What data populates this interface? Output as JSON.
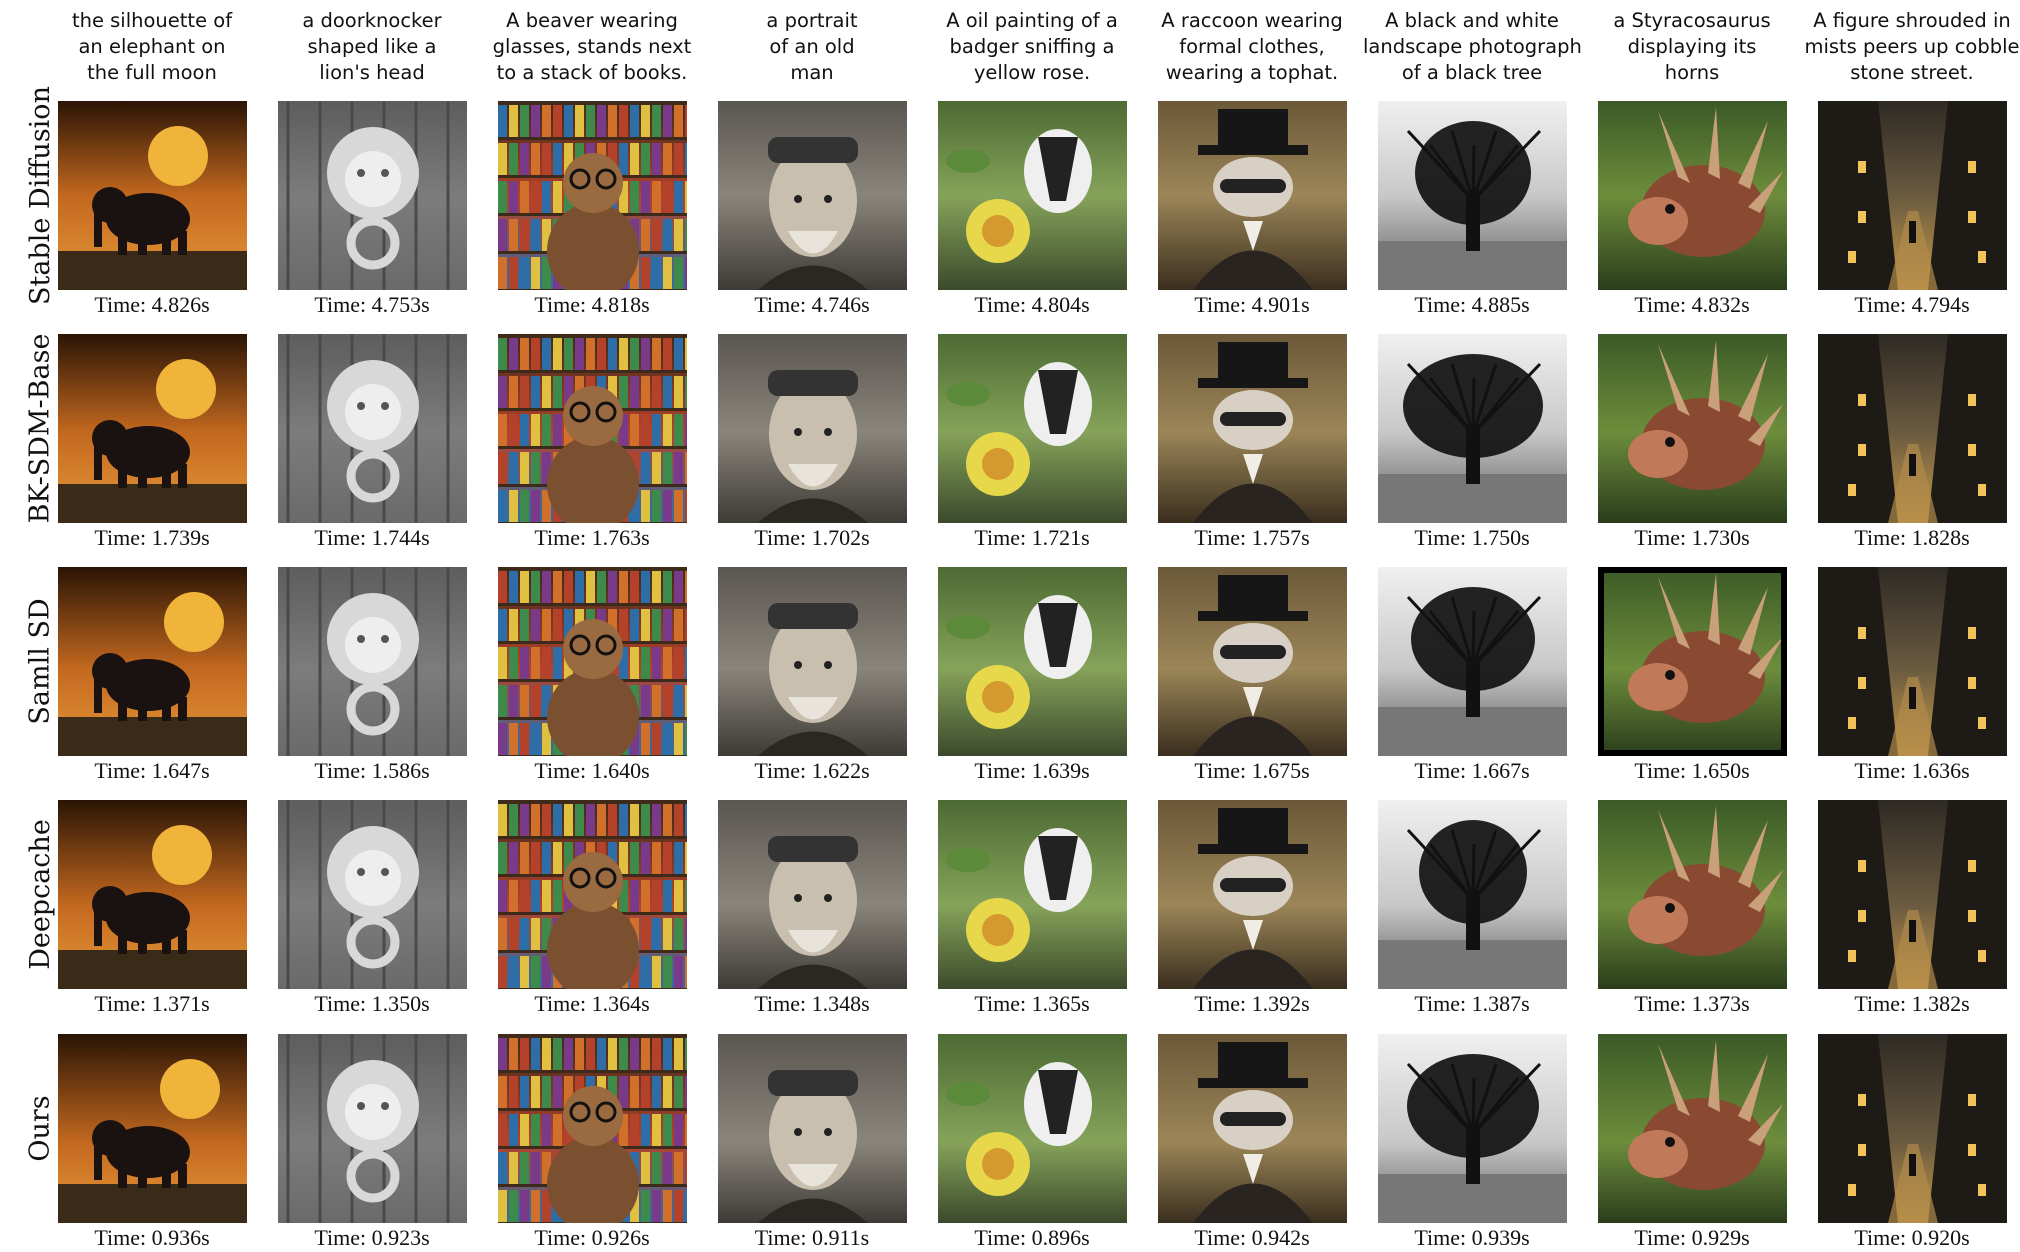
{
  "columns": [
    {
      "prompt": [
        "the silhouette of",
        "an elephant on",
        "the full moon"
      ]
    },
    {
      "prompt": [
        "a doorknocker",
        "shaped like a",
        "lion's head"
      ]
    },
    {
      "prompt": [
        "A beaver wearing",
        "glasses, stands next",
        "to a stack of books."
      ]
    },
    {
      "prompt": [
        "a portrait",
        "of an old",
        "man"
      ]
    },
    {
      "prompt": [
        "A oil painting of a",
        "badger sniffing a",
        "yellow rose."
      ]
    },
    {
      "prompt": [
        "A raccoon wearing",
        "formal clothes,",
        "wearing a tophat."
      ]
    },
    {
      "prompt": [
        "A black and white",
        "landscape photograph",
        "of a black tree"
      ]
    },
    {
      "prompt": [
        "a Styracosaurus",
        "displaying its",
        "horns"
      ]
    },
    {
      "prompt": [
        "A figure shrouded in",
        "mists peers up cobble",
        "stone street."
      ]
    }
  ],
  "rows": [
    {
      "label": "Stable Diffusion",
      "times": [
        "Time: 4.826s",
        "Time: 4.753s",
        "Time: 4.818s",
        "Time: 4.746s",
        "Time: 4.804s",
        "Time: 4.901s",
        "Time: 4.885s",
        "Time: 4.832s",
        "Time: 4.794s"
      ]
    },
    {
      "label": "BK-SDM-Base",
      "times": [
        "Time: 1.739s",
        "Time: 1.744s",
        "Time: 1.763s",
        "Time: 1.702s",
        "Time: 1.721s",
        "Time: 1.757s",
        "Time: 1.750s",
        "Time: 1.730s",
        "Time: 1.828s"
      ]
    },
    {
      "label": "Samll SD",
      "times": [
        "Time: 1.647s",
        "Time: 1.586s",
        "Time: 1.640s",
        "Time: 1.622s",
        "Time: 1.639s",
        "Time: 1.675s",
        "Time: 1.667s",
        "Time: 1.650s",
        "Time: 1.636s"
      ]
    },
    {
      "label": "Deepcache",
      "times": [
        "Time: 1.371s",
        "Time: 1.350s",
        "Time: 1.364s",
        "Time: 1.348s",
        "Time: 1.365s",
        "Time: 1.392s",
        "Time: 1.387s",
        "Time: 1.373s",
        "Time: 1.382s"
      ]
    },
    {
      "label": "Ours",
      "times": [
        "Time: 0.936s",
        "Time: 0.923s",
        "Time: 0.926s",
        "Time: 0.911s",
        "Time: 0.896s",
        "Time: 0.942s",
        "Time: 0.939s",
        "Time: 0.929s",
        "Time: 0.920s"
      ]
    }
  ],
  "thumbnails": [
    {
      "subject": "elephant-moon",
      "bg": [
        "#2a1405",
        "#c2681f",
        "#e89a3a"
      ],
      "fg": "#1a1210",
      "accent": "#f0b43a"
    },
    {
      "subject": "lion-knocker",
      "bg": [
        "#5d5d5d",
        "#7c7c7c",
        "#6a6a6a"
      ],
      "fg": "#d8d8d8",
      "accent": "#9a9a9a"
    },
    {
      "subject": "beaver-books",
      "bg": [
        "#3d2a1a",
        "#b4422a",
        "#2d6ea8"
      ],
      "fg": "#7a5030",
      "accent": "#e0c040"
    },
    {
      "subject": "old-man",
      "bg": [
        "#5a5650",
        "#8a857c",
        "#3e3b36"
      ],
      "fg": "#c9bfae",
      "accent": "#2b2824"
    },
    {
      "subject": "badger-rose",
      "bg": [
        "#4c6a33",
        "#86a35a",
        "#3b4a2c"
      ],
      "fg": "#e6d84a",
      "accent": "#222222"
    },
    {
      "subject": "raccoon-tophat",
      "bg": [
        "#6b5838",
        "#9c8658",
        "#3a2e1e"
      ],
      "fg": "#d8d0c4",
      "accent": "#161616"
    },
    {
      "subject": "black-tree",
      "bg": [
        "#f0f0f0",
        "#c8c8c8",
        "#5a5a5a"
      ],
      "fg": "#111111",
      "accent": "#888888"
    },
    {
      "subject": "styracosaurus",
      "bg": [
        "#3b5a26",
        "#6d8d3c",
        "#2a3d1b"
      ],
      "fg": "#8a4a32",
      "accent": "#c07a5a"
    },
    {
      "subject": "misty-street",
      "bg": [
        "#2e2a24",
        "#6a5a40",
        "#c89a4a"
      ],
      "fg": "#1e1b17",
      "accent": "#f3c35a"
    }
  ]
}
